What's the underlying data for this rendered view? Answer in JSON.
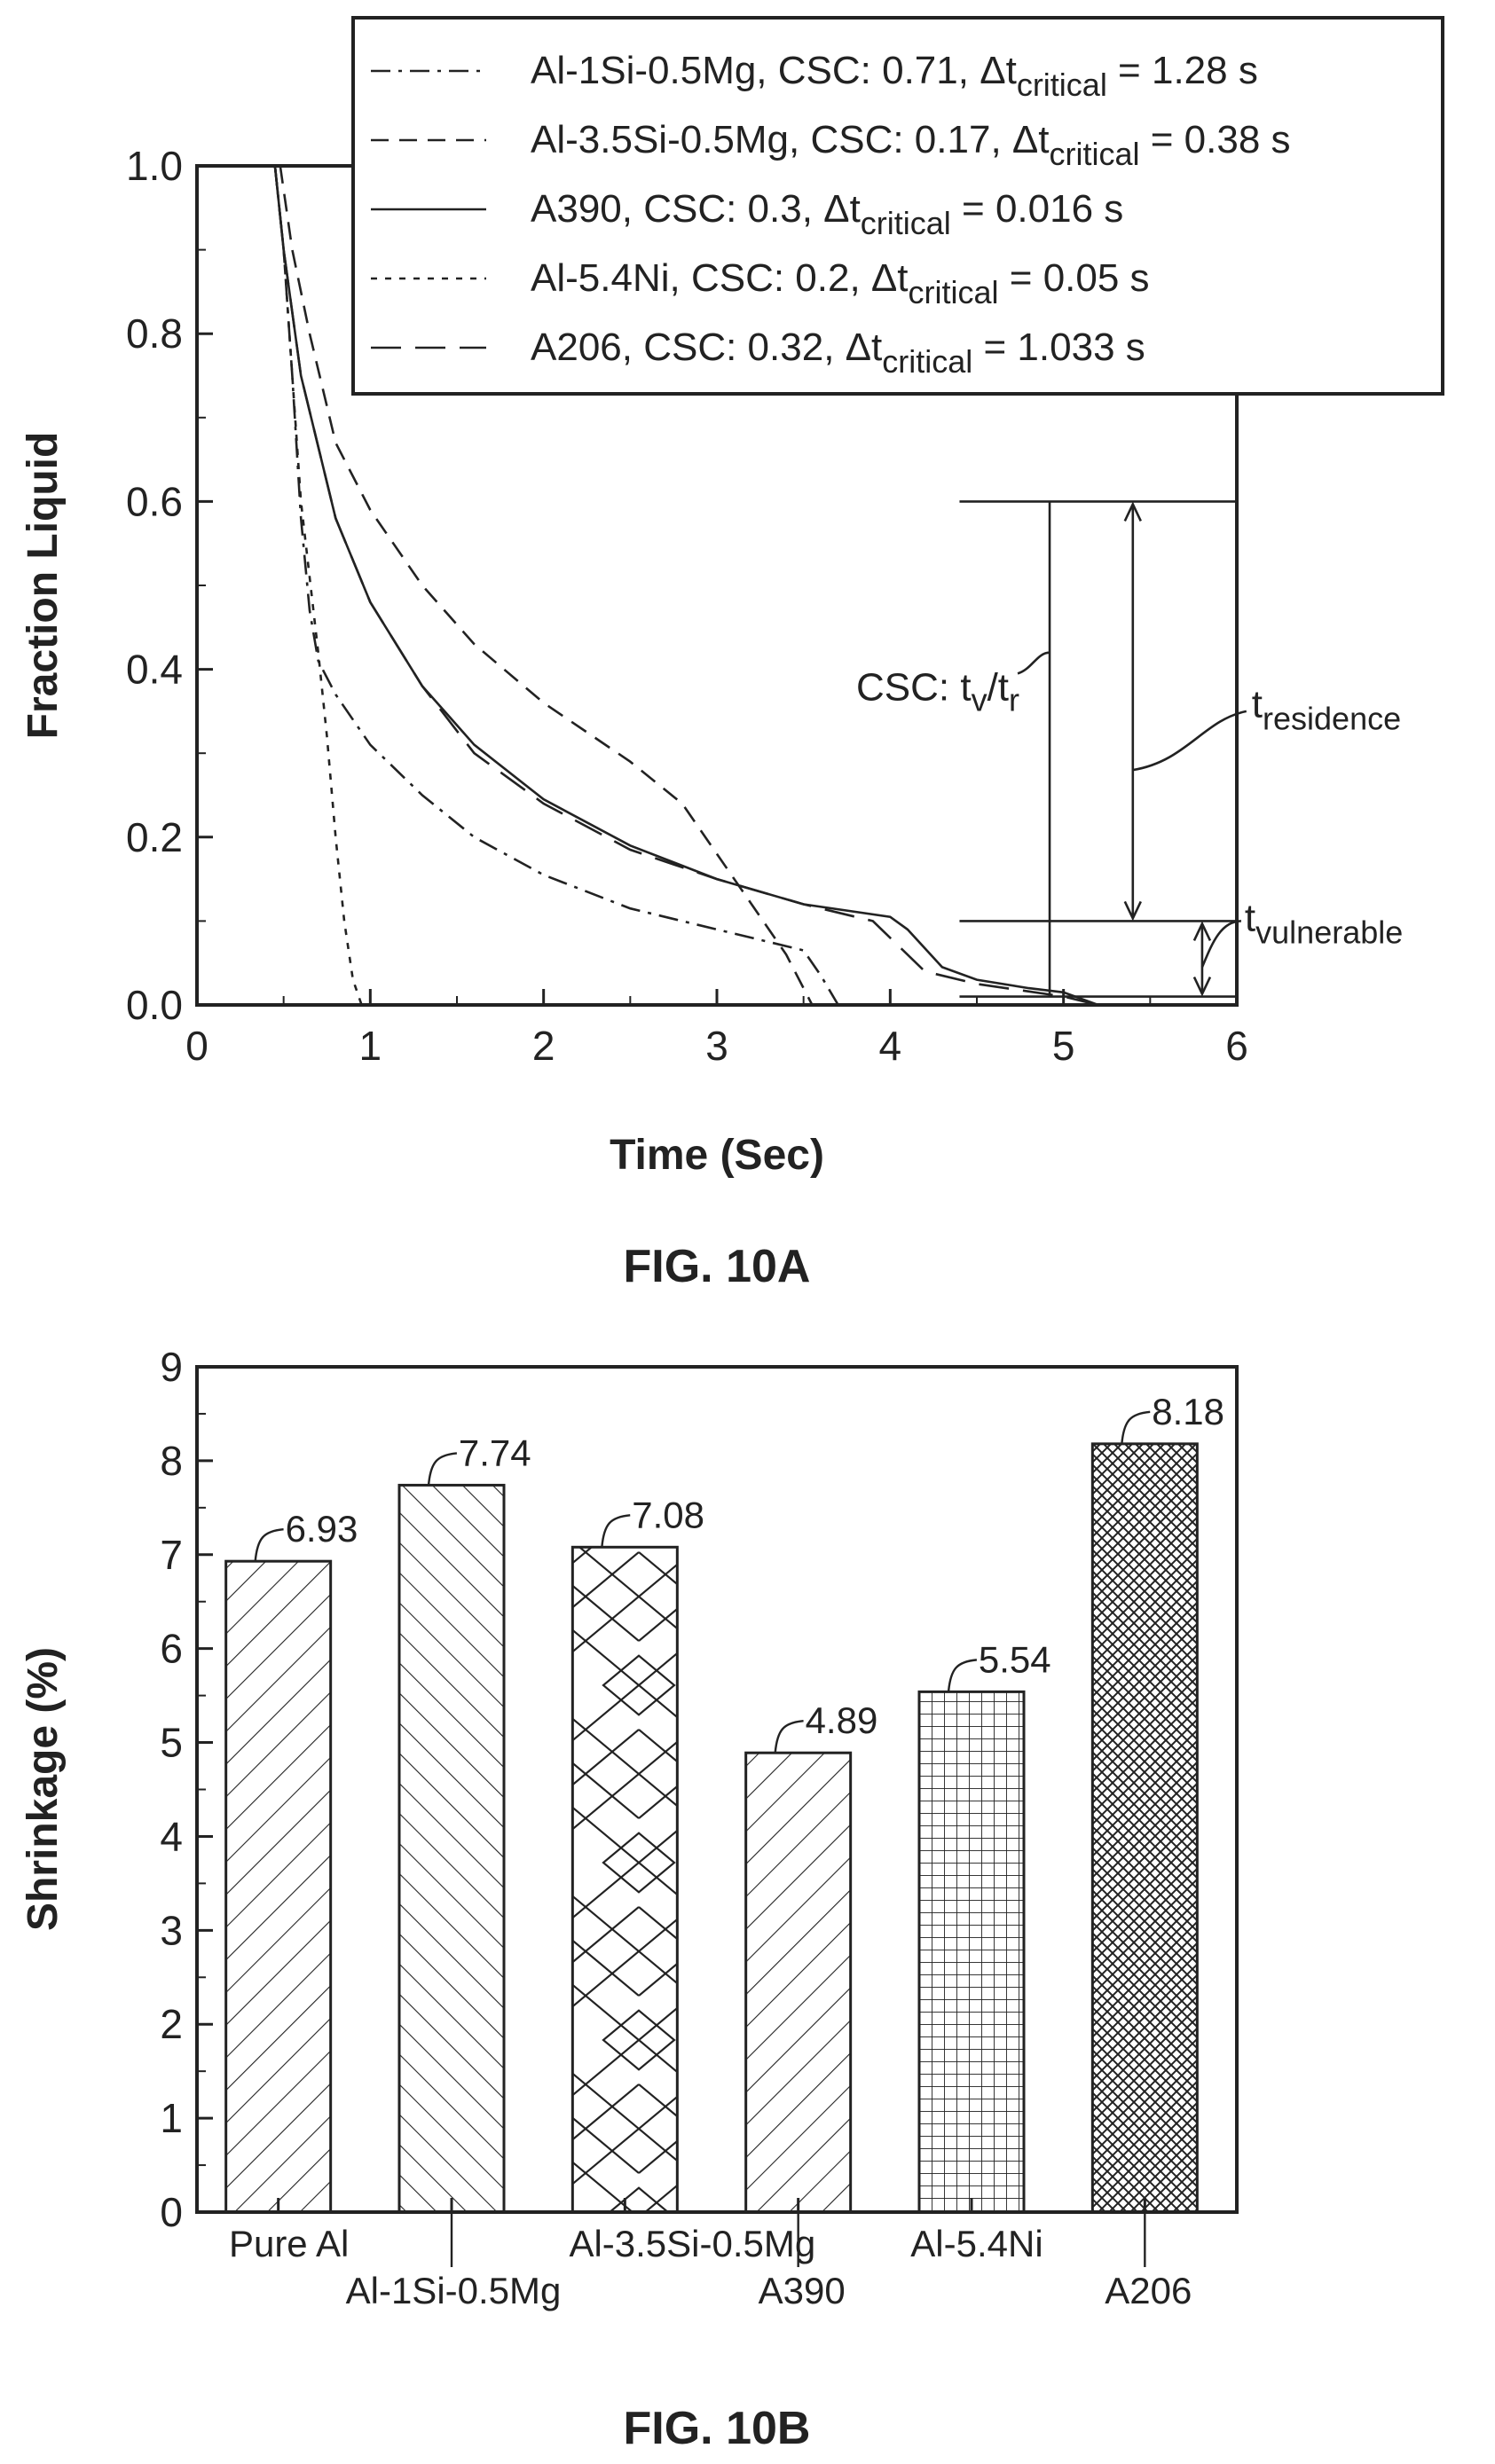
{
  "chart_data": [
    {
      "type": "line",
      "caption": "FIG. 10A",
      "xlabel": "Time (Sec)",
      "ylabel": "Fraction Liquid",
      "xlim": [
        0,
        6
      ],
      "ylim": [
        0,
        1.0
      ],
      "xticks": [
        "0",
        "1",
        "2",
        "3",
        "4",
        "5",
        "6"
      ],
      "yticks": [
        "0.0",
        "0.2",
        "0.4",
        "0.6",
        "0.8",
        "1.0"
      ],
      "legend_placement": "top-right",
      "series": [
        {
          "label_main": "Al-1Si-0.5Mg, CSC: 0.71, Δt",
          "label_sub": "critical",
          "label_tail": " = 1.28 s",
          "style": "dashdot",
          "points": [
            [
              0.45,
              1.0
            ],
            [
              0.5,
              0.9
            ],
            [
              0.55,
              0.75
            ],
            [
              0.6,
              0.58
            ],
            [
              0.65,
              0.47
            ],
            [
              0.7,
              0.41
            ],
            [
              0.8,
              0.37
            ],
            [
              1.0,
              0.31
            ],
            [
              1.3,
              0.25
            ],
            [
              1.6,
              0.2
            ],
            [
              2.0,
              0.155
            ],
            [
              2.5,
              0.115
            ],
            [
              3.0,
              0.09
            ],
            [
              3.3,
              0.075
            ],
            [
              3.5,
              0.065
            ],
            [
              3.6,
              0.035
            ],
            [
              3.7,
              0.0
            ]
          ]
        },
        {
          "label_main": "Al-3.5Si-0.5Mg, CSC: 0.17, Δt",
          "label_sub": "critical",
          "label_tail": " = 0.38 s",
          "style": "dashed",
          "points": [
            [
              0.48,
              1.0
            ],
            [
              0.55,
              0.9
            ],
            [
              0.65,
              0.8
            ],
            [
              0.8,
              0.67
            ],
            [
              1.0,
              0.59
            ],
            [
              1.3,
              0.5
            ],
            [
              1.6,
              0.43
            ],
            [
              2.0,
              0.36
            ],
            [
              2.5,
              0.29
            ],
            [
              2.8,
              0.24
            ],
            [
              3.0,
              0.18
            ],
            [
              3.2,
              0.12
            ],
            [
              3.4,
              0.06
            ],
            [
              3.55,
              0.0
            ]
          ]
        },
        {
          "label_main": "A390, CSC: 0.3, Δt",
          "label_sub": "critical",
          "label_tail": " = 0.016 s",
          "style": "solid",
          "points": [
            [
              0.45,
              1.0
            ],
            [
              0.5,
              0.9
            ],
            [
              0.6,
              0.75
            ],
            [
              0.8,
              0.58
            ],
            [
              1.0,
              0.48
            ],
            [
              1.3,
              0.38
            ],
            [
              1.6,
              0.31
            ],
            [
              2.0,
              0.245
            ],
            [
              2.5,
              0.19
            ],
            [
              3.0,
              0.15
            ],
            [
              3.5,
              0.12
            ],
            [
              4.0,
              0.105
            ],
            [
              4.1,
              0.09
            ],
            [
              4.3,
              0.045
            ],
            [
              4.5,
              0.03
            ],
            [
              4.8,
              0.02
            ],
            [
              5.0,
              0.015
            ],
            [
              5.2,
              0.0
            ]
          ]
        },
        {
          "label_main": "Al-5.4Ni, CSC: 0.2, Δt",
          "label_sub": "critical",
          "label_tail": " = 0.05 s",
          "style": "dotted",
          "points": [
            [
              0.45,
              1.0
            ],
            [
              0.5,
              0.9
            ],
            [
              0.55,
              0.75
            ],
            [
              0.6,
              0.6
            ],
            [
              0.7,
              0.42
            ],
            [
              0.75,
              0.32
            ],
            [
              0.8,
              0.2
            ],
            [
              0.85,
              0.1
            ],
            [
              0.9,
              0.03
            ],
            [
              0.95,
              0.0
            ]
          ]
        },
        {
          "label_main": "A206, CSC: 0.32, Δt",
          "label_sub": "critical",
          "label_tail": " = 1.033 s",
          "style": "longdash",
          "points": [
            [
              0.45,
              1.0
            ],
            [
              0.5,
              0.9
            ],
            [
              0.6,
              0.75
            ],
            [
              0.8,
              0.58
            ],
            [
              1.0,
              0.48
            ],
            [
              1.3,
              0.38
            ],
            [
              1.6,
              0.3
            ],
            [
              2.0,
              0.24
            ],
            [
              2.5,
              0.185
            ],
            [
              3.0,
              0.15
            ],
            [
              3.5,
              0.12
            ],
            [
              3.9,
              0.1
            ],
            [
              4.0,
              0.08
            ],
            [
              4.2,
              0.04
            ],
            [
              4.5,
              0.025
            ],
            [
              5.0,
              0.01
            ],
            [
              5.2,
              0.0
            ]
          ]
        }
      ],
      "annotations": {
        "csc_main": "CSC: t",
        "csc_sub1": "v",
        "csc_mid": "/t",
        "csc_sub2": "r",
        "residence_main": "t",
        "residence_sub": "residence",
        "vulnerable_main": "t",
        "vulnerable_sub": "vulnerable"
      }
    },
    {
      "type": "bar",
      "caption": "FIG. 10B",
      "xlabel": "",
      "ylabel": "Shrinkage (%)",
      "ylim": [
        0,
        9
      ],
      "yticks": [
        "0",
        "1",
        "2",
        "3",
        "4",
        "5",
        "6",
        "7",
        "8",
        "9"
      ],
      "categories": [
        "Pure Al",
        "Al-1Si-0.5Mg",
        "Al-3.5Si-0.5Mg",
        "A390",
        "Al-5.4Ni",
        "A206"
      ],
      "values": [
        6.93,
        7.74,
        7.08,
        4.89,
        5.54,
        8.18
      ],
      "value_labels": [
        "6.93",
        "7.74",
        "7.08",
        "4.89",
        "5.54",
        "8.18"
      ],
      "patterns": [
        "back-diagonal",
        "forward-diagonal",
        "zigzag",
        "back-diagonal",
        "grid",
        "crosshatch"
      ],
      "grid": false
    }
  ]
}
